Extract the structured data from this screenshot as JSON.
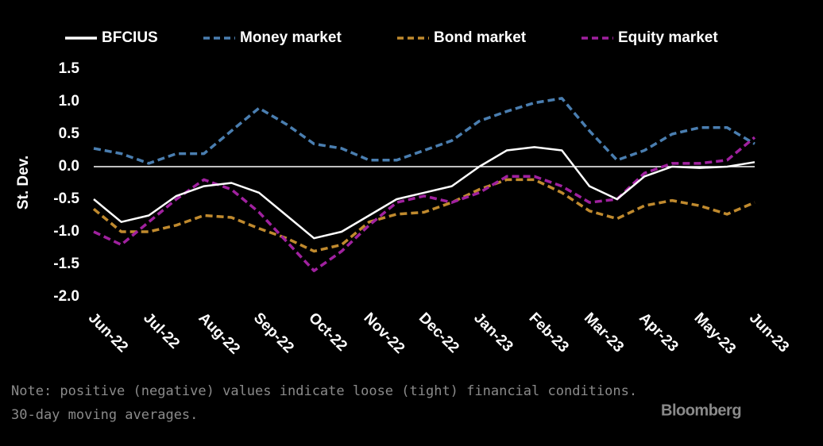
{
  "chart_data": {
    "type": "line",
    "y_label": "St. Dev.",
    "note": [
      "Note: positive (negative) values indicate loose (tight) financial conditions.",
      "30-day moving averages."
    ],
    "source": "Bloomberg",
    "categories": [
      "Jun-22",
      null,
      "Jul-22",
      null,
      "Aug-22",
      null,
      "Sep-22",
      null,
      "Oct-22",
      null,
      "Nov-22",
      null,
      "Dec-22",
      null,
      "Jan-23",
      null,
      "Feb-23",
      null,
      "Mar-23",
      null,
      "Apr-23",
      null,
      "May-23",
      null,
      "Jun-23"
    ],
    "series": [
      {
        "name": "BFCIUS",
        "color": "#ffffff",
        "dash": false,
        "values": [
          -0.5,
          -0.85,
          -0.75,
          -0.45,
          -0.3,
          -0.25,
          -0.4,
          -0.75,
          -1.1,
          -1.0,
          -0.75,
          -0.5,
          -0.4,
          -0.3,
          0.0,
          0.25,
          0.3,
          0.25,
          -0.3,
          -0.5,
          -0.15,
          0.0,
          -0.02,
          0.0,
          0.07
        ]
      },
      {
        "name": "Money market",
        "color": "#4a7eb0",
        "dash": true,
        "values": [
          0.28,
          0.2,
          0.05,
          0.2,
          0.2,
          0.55,
          0.9,
          0.65,
          0.35,
          0.28,
          0.1,
          0.1,
          0.25,
          0.4,
          0.7,
          0.85,
          0.98,
          1.05,
          0.55,
          0.1,
          0.25,
          0.5,
          0.6,
          0.6,
          0.35
        ]
      },
      {
        "name": "Bond market",
        "color": "#c08a2e",
        "dash": true,
        "values": [
          -0.65,
          -1.0,
          -1.0,
          -0.9,
          -0.75,
          -0.78,
          -0.95,
          -1.1,
          -1.3,
          -1.2,
          -0.85,
          -0.73,
          -0.7,
          -0.55,
          -0.35,
          -0.2,
          -0.2,
          -0.4,
          -0.68,
          -0.8,
          -0.6,
          -0.52,
          -0.6,
          -0.73,
          -0.55
        ]
      },
      {
        "name": "Equity market",
        "color": "#a0219f",
        "dash": true,
        "values": [
          -1.0,
          -1.2,
          -0.85,
          -0.5,
          -0.2,
          -0.35,
          -0.7,
          -1.15,
          -1.6,
          -1.3,
          -0.9,
          -0.55,
          -0.45,
          -0.55,
          -0.4,
          -0.15,
          -0.15,
          -0.3,
          -0.55,
          -0.5,
          -0.1,
          0.05,
          0.05,
          0.1,
          0.45
        ]
      }
    ],
    "ylim": [
      -2,
      1.5
    ],
    "yticks": [
      {
        "value": -2,
        "label": "-2.0"
      },
      -1.5,
      {
        "value": -1,
        "label": "-1.0"
      },
      -0.5,
      {
        "value": 0,
        "label": "0.0"
      },
      0.5,
      {
        "value": 1,
        "label": "1.0"
      },
      1.5
    ],
    "zero_line": true,
    "legend": "top"
  }
}
